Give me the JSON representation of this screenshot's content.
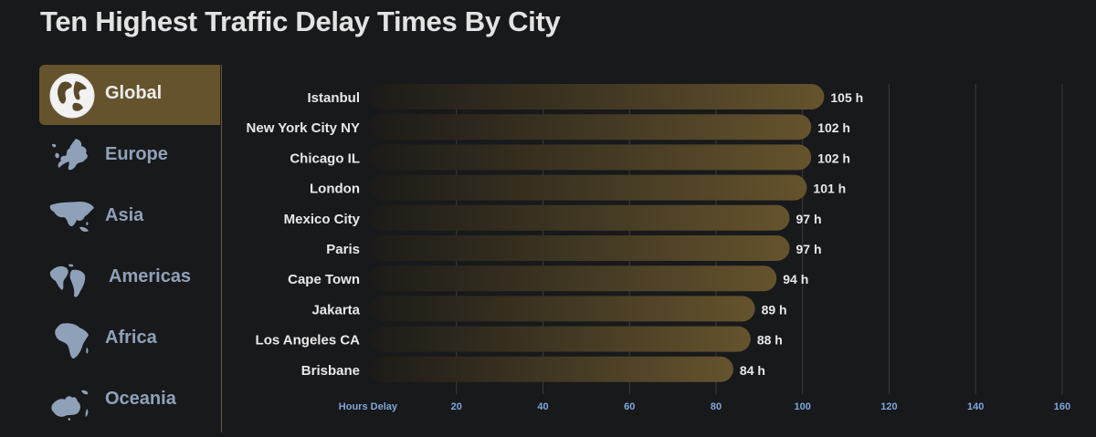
{
  "page_title": "Ten Highest Traffic Delay Times By City",
  "nav": {
    "items": [
      {
        "label": "Global",
        "icon": "globe-icon",
        "active": true
      },
      {
        "label": "Europe",
        "icon": "europe-map-icon",
        "active": false
      },
      {
        "label": "Asia",
        "icon": "asia-map-icon",
        "active": false
      },
      {
        "label": "Americas",
        "icon": "americas-map-icon",
        "active": false
      },
      {
        "label": "Africa",
        "icon": "africa-map-icon",
        "active": false
      },
      {
        "label": "Oceania",
        "icon": "oceania-map-icon",
        "active": false
      }
    ]
  },
  "colors": {
    "background": "#18191b",
    "bar_start": "#1c1b18",
    "bar_end": "#65532d",
    "grid": "#3a3b3e",
    "axis_text": "#7ea6dc",
    "label_text": "#e8e8e8"
  },
  "chart_data": {
    "type": "bar",
    "orientation": "horizontal",
    "title": "Ten Highest Traffic Delay Times By City",
    "xlabel": "Hours Delay",
    "categories": [
      "Istanbul",
      "New York City NY",
      "Chicago IL",
      "London",
      "Mexico City",
      "Paris",
      "Cape Town",
      "Jakarta",
      "Los Angeles CA",
      "Brisbane"
    ],
    "values": [
      105,
      102,
      102,
      101,
      97,
      97,
      94,
      89,
      88,
      84
    ],
    "value_labels": [
      "105 h",
      "102 h",
      "102 h",
      "101 h",
      "97 h",
      "97 h",
      "94 h",
      "89 h",
      "88 h",
      "84 h"
    ],
    "xticks": [
      20,
      40,
      60,
      80,
      100,
      120,
      140,
      160
    ],
    "xlim": [
      0,
      160
    ],
    "grid": true
  }
}
